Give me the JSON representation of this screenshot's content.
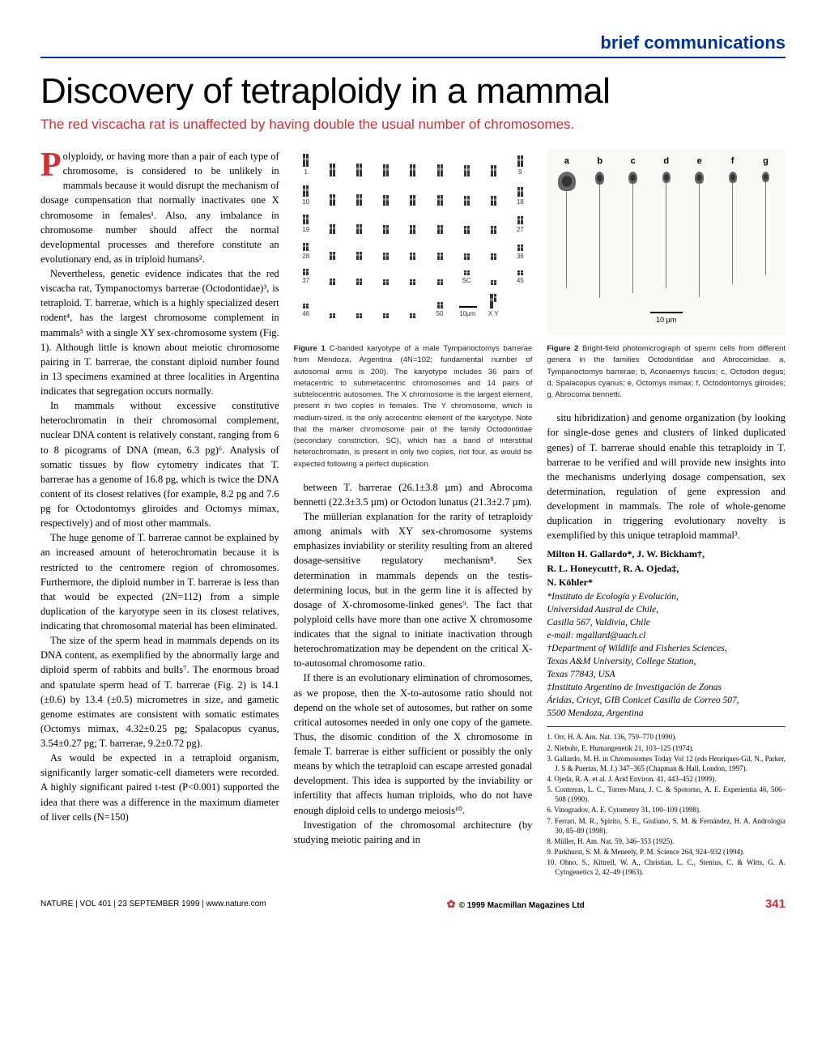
{
  "section_header": "brief communications",
  "title": "Discovery of tetraploidy in a mammal",
  "subtitle": "The red viscacha rat is unaffected by having double the usual number of chromosomes.",
  "colors": {
    "accent_red": "#cc3333",
    "accent_blue": "#003399",
    "text": "#000000",
    "background": "#ffffff"
  },
  "body": {
    "col1": {
      "p1_dropcap": "P",
      "p1": "olyploidy, or having more than a pair of each type of chromosome, is considered to be unlikely in mammals because it would disrupt the mechanism of dosage compensation that normally inactivates one X chromosome in females¹. Also, any imbalance in chromosome number should affect the normal developmental processes and therefore constitute an evolutionary end, as in triploid humans².",
      "p2": "Nevertheless, genetic evidence indicates that the red viscacha rat, Tympanoctomys barrerae (Octodontidae)³, is tetraploid. T. barrerae, which is a highly specialized desert rodent⁴, has the largest chromosome complement in mammals⁵ with a single XY sex-chromosome system (Fig. 1). Although little is known about meiotic chromosome pairing in T. barrerae, the constant diploid number found in 13 specimens examined at three localities in Argentina indicates that segregation occurs normally.",
      "p3": "In mammals without excessive constitutive heterochromatin in their chromosomal complement, nuclear DNA content is relatively constant, ranging from 6 to 8 picograms of DNA (mean, 6.3 pg)⁶. Analysis of somatic tissues by flow cytometry indicates that T. barrerae has a genome of 16.8 pg, which is twice the DNA content of its closest relatives (for example, 8.2 pg and 7.6 pg for Octodontomys gliroides and Octomys mimax, respectively) and of most other mammals.",
      "p4": "The huge genome of T. barrerae cannot be explained by an increased amount of heterochromatin because it is restricted to the centromere region of chromosomes. Furthermore, the diploid number in T. barrerae is less than that would be expected (2N=112) from a simple duplication of the karyotype seen in its closest relatives, indicating that chromosomal material has been eliminated.",
      "p5": "The size of the sperm head in mammals depends on its DNA content, as exemplified by the abnormally large and diploid sperm of rabbits and bulls⁷. The enormous broad and spatulate sperm head of T. barrerae (Fig. 2) is 14.1 (±0.6) by 13.4 (±0.5) micrometres in size, and gametic genome estimates are consistent with somatic estimates (Octomys mimax, 4.32±0.25 pg; Spalacopus cyanus, 3.54±0.27 pg; T. barrerae, 9.2±0.72 pg).",
      "p6": "As would be expected in a tetraploid organism, significantly larger somatic-cell diameters were recorded. A highly significant paired t-test (P<0.001) supported the idea that there was a difference in the maximum diameter of liver cells (N=150)"
    },
    "col2": {
      "p1": "between T. barrerae (26.1±3.8 µm) and Abrocoma bennetti (22.3±3.5 µm) or Octodon lunatus (21.3±2.7 µm).",
      "p2": "The müllerian explanation for the rarity of tetraploidy among animals with XY sex-chromosome systems emphasizes inviability or sterility resulting from an altered dosage-sensitive regulatory mechanism⁸. Sex determination in mammals depends on the testis-determining locus, but in the germ line it is affected by dosage of X-chromosome-linked genes⁹. The fact that polyploid cells have more than one active X chromosome indicates that the signal to initiate inactivation through heterochromatization may be dependent on the critical X-to-autosomal chromosome ratio.",
      "p3": "If there is an evolutionary elimination of chromosomes, as we propose, then the X-to-autosome ratio should not depend on the whole set of autosomes, but rather on some critical autosomes needed in only one copy of the gamete. Thus, the disomic condition of the X chromosome in female T. barrerae is either sufficient or possibly the only means by which the tetraploid can escape arrested gonadal development. This idea is supported by the inviability or infertility that affects human triploids, who do not have enough diploid cells to undergo meiosis¹⁰.",
      "p4": "Investigation of the chromosomal architecture (by studying meiotic pairing and in"
    },
    "col3": {
      "p1": "situ hibridization) and genome organization (by looking for single-dose genes and clusters of linked duplicated genes) of T. barrerae should enable this tetraploidy in T. barrerae to be verified and will provide new insights into the mechanisms underlying dosage compensation, sex determination, regulation of gene expression and development in mammals. The role of whole-genome duplication in triggering evolutionary novelty is exemplified by this unique tetraploid mammal³."
    }
  },
  "figure1": {
    "caption_bold": "Figure 1",
    "caption": " C-banded karyotype of a male Tympanoctomys barrerae from Mendoza, Argentina (4N=102; fundamental number of autosomal arms is 200). The karyotype includes 36 pairs of metacentric to submetacentric chromosomes and 14 pairs of subtelocentric autosomes. The X chromosome is the largest element, present in two copies in females. The Y chromosome, which is medium-sized, is the only acrocentric element of the karyotype. Note that the marker chromosome pair of the family Octodontidae (secondary constriction, SC), which has a band of interstitial heterochromatin, is present in only two copies, not four, as would be expected following a perfect duplication.",
    "rows": [
      {
        "start": 1,
        "end": 9
      },
      {
        "start": 10,
        "end": 18
      },
      {
        "start": 19,
        "end": 27
      },
      {
        "start": 28,
        "end": 36
      },
      {
        "start": 37,
        "end": 45,
        "sc_at": 43
      },
      {
        "start": 46,
        "end": 50,
        "extras": [
          "10µm",
          "X Y"
        ]
      }
    ],
    "scale_label": "10µm",
    "sex_label": "X Y",
    "sc_label": "SC"
  },
  "figure2": {
    "caption_bold": "Figure 2",
    "caption": " Bright-field photomicrograph of sperm cells from different genera in the families Octodontidae and Abrocomidae. a, Tympanoctomys barrerae; b, Aconaemys fuscus; c, Octodon degus; d, Spalacopus cyanus; e, Octomys mimax; f, Octodontomys gliroides; g, Abrocoma bennetti.",
    "scale_label": "10 µm",
    "sperm": [
      {
        "label": "a",
        "head_w": 22,
        "head_h": 24,
        "tail": 120
      },
      {
        "label": "b",
        "head_w": 11,
        "head_h": 16,
        "tail": 140
      },
      {
        "label": "c",
        "head_w": 11,
        "head_h": 15,
        "tail": 135
      },
      {
        "label": "d",
        "head_w": 10,
        "head_h": 14,
        "tail": 130
      },
      {
        "label": "e",
        "head_w": 11,
        "head_h": 15,
        "tail": 140
      },
      {
        "label": "f",
        "head_w": 10,
        "head_h": 14,
        "tail": 125
      },
      {
        "label": "g",
        "head_w": 9,
        "head_h": 13,
        "tail": 115
      }
    ]
  },
  "authors_line1": "Milton H. Gallardo*, J. W. Bickham†,",
  "authors_line2": "R. L. Honeycutt†, R. A. Ojeda‡,",
  "authors_line3": "N. Köhler*",
  "affiliations": [
    "*Instituto de Ecología y Evolución,",
    "Universidad Austral de Chile,",
    "Casilla 567, Valdivia, Chile",
    "e-mail: mgallard@uach.cl",
    "†Department of Wildlife and Fisheries Sciences,",
    "Texas A&M University, College Station,",
    "Texas 77843, USA",
    "‡Instituto Argentino de Investigación de Zonas",
    "Áridas, Cricyt, GIB Conicet Casilla de Correo 507,",
    "5500 Mendoza, Argentina"
  ],
  "references": [
    "1. Orr, H. A. Am. Nat. 136, 759–770 (1990).",
    "2. Niebuhr, E. Humangenetik 21, 103–125 (1974).",
    "3. Gallardo, M. H. in Chromosomes Today Vol 12 (eds Henriques-Gil, N., Parker, J. S & Puertas, M. J.) 347–365 (Chapman & Hall, London, 1997).",
    "4. Ojeda, R. A. et al. J. Arid Environ. 41, 443–452 (1999).",
    "5. Contreras, L. C., Torres-Mura, J. C. & Spotorno, A. E. Experientia 46, 506–508 (1990).",
    "6. Vinogradov, A. E. Cytometry 31, 100–109 (1998).",
    "7. Ferrari, M. R., Spirito, S. E., Giuliano, S. M. & Fernández, H. A. Andrologia 30, 85–89 (1998).",
    "8. Müller, H. Am. Nat. 59, 346–353 (1925).",
    "9. Parkhurst, S. M. & Meneely, P. M. Science 264, 924–932 (1994).",
    "10. Ohno, S., Kittrell, W. A., Christian, L. C., Stenius, C. & Witts, G. A. Cytogenetics 2, 42–49 (1963)."
  ],
  "footer": {
    "left": "NATURE | VOL 401 | 23 SEPTEMBER 1999 | www.nature.com",
    "center": "© 1999 Macmillan Magazines Ltd",
    "pagenum": "341"
  }
}
